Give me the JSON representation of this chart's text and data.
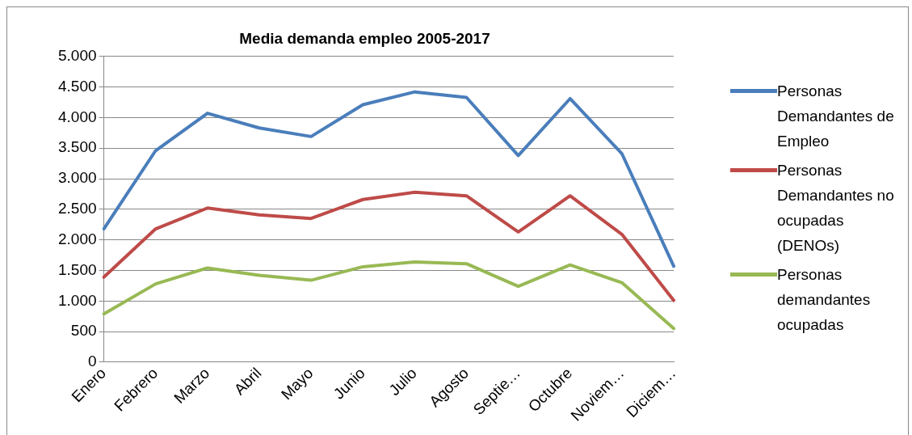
{
  "chart_data": {
    "type": "line",
    "title": "Media demanda empleo 2005-2017",
    "categories": [
      "Enero",
      "Febrero",
      "Marzo",
      "Abril",
      "Mayo",
      "Junio",
      "Julio",
      "Agosto",
      "Septie…",
      "Octubre",
      "Noviem…",
      "Diciem…"
    ],
    "series": [
      {
        "name": "Personas Demandantes de Empleo",
        "color": "#4a7ebb",
        "values": [
          2180,
          3460,
          4070,
          3830,
          3690,
          4210,
          4420,
          4330,
          3380,
          4310,
          3410,
          1570
        ]
      },
      {
        "name": "Personas Demandantes no ocupadas (DENOs)",
        "color": "#be4b48",
        "values": [
          1390,
          2180,
          2520,
          2410,
          2350,
          2660,
          2780,
          2720,
          2130,
          2720,
          2090,
          1010
        ]
      },
      {
        "name": "Personas demandantes ocupadas",
        "color": "#98b954",
        "values": [
          790,
          1280,
          1540,
          1420,
          1340,
          1560,
          1640,
          1610,
          1240,
          1590,
          1300,
          550
        ]
      }
    ],
    "ylim": [
      0,
      5000
    ],
    "yticks": [
      {
        "value": 0,
        "label": "0"
      },
      {
        "value": 500,
        "label": "500"
      },
      {
        "value": 1000,
        "label": "1.000"
      },
      {
        "value": 1500,
        "label": "1.500"
      },
      {
        "value": 2000,
        "label": "2.000"
      },
      {
        "value": 2500,
        "label": "2.500"
      },
      {
        "value": 3000,
        "label": "3.000"
      },
      {
        "value": 3500,
        "label": "3.500"
      },
      {
        "value": 4000,
        "label": "4.000"
      },
      {
        "value": 4500,
        "label": "4.500"
      },
      {
        "value": 5000,
        "label": "5.000"
      }
    ],
    "grid": "y",
    "legend": "right",
    "marker": "none",
    "line_style": "solid"
  }
}
